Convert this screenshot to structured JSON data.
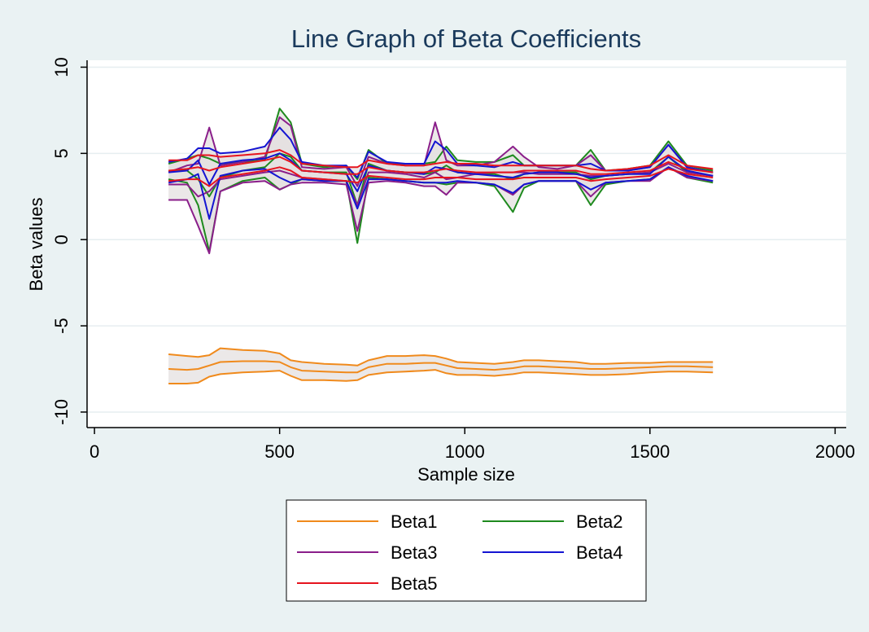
{
  "chart_data": {
    "type": "line",
    "title": "Line Graph of Beta Coefficients",
    "xlabel": "Sample size",
    "ylabel": "Beta values",
    "xlim": [
      -20,
      2030
    ],
    "ylim": [
      -10.9,
      10.4
    ],
    "xticks": [
      0,
      500,
      1000,
      1500,
      2000
    ],
    "xtick_labels": [
      "0",
      "500",
      "1000",
      "1500",
      "2000"
    ],
    "yticks": [
      -10,
      -5,
      0,
      5,
      10
    ],
    "ytick_labels": [
      "-10",
      "-5",
      "0",
      "5",
      "10"
    ],
    "grid": true,
    "legend_position": "bottom",
    "band_fill": "#e4e0e0",
    "x": [
      200,
      250,
      280,
      310,
      340,
      400,
      460,
      500,
      530,
      560,
      620,
      680,
      710,
      740,
      790,
      840,
      890,
      920,
      950,
      980,
      1030,
      1080,
      1130,
      1160,
      1200,
      1250,
      1300,
      1340,
      1380,
      1440,
      1500,
      1550,
      1600,
      1670
    ],
    "series": [
      {
        "name": "Beta1",
        "color": "#f08a1c",
        "mean": [
          -7.5,
          -7.55,
          -7.5,
          -7.3,
          -7.1,
          -7.05,
          -7.05,
          -7.1,
          -7.4,
          -7.6,
          -7.65,
          -7.7,
          -7.7,
          -7.4,
          -7.2,
          -7.2,
          -7.15,
          -7.15,
          -7.3,
          -7.45,
          -7.5,
          -7.55,
          -7.45,
          -7.35,
          -7.35,
          -7.4,
          -7.45,
          -7.5,
          -7.5,
          -7.45,
          -7.4,
          -7.35,
          -7.35,
          -7.4
        ],
        "upper": [
          -6.65,
          -6.75,
          -6.8,
          -6.7,
          -6.3,
          -6.4,
          -6.45,
          -6.6,
          -7.0,
          -7.1,
          -7.2,
          -7.25,
          -7.3,
          -7.0,
          -6.75,
          -6.75,
          -6.7,
          -6.75,
          -6.9,
          -7.1,
          -7.15,
          -7.2,
          -7.1,
          -7.0,
          -7.0,
          -7.05,
          -7.1,
          -7.2,
          -7.2,
          -7.15,
          -7.15,
          -7.1,
          -7.1,
          -7.1
        ],
        "lower": [
          -8.35,
          -8.35,
          -8.3,
          -7.95,
          -7.8,
          -7.7,
          -7.65,
          -7.6,
          -7.9,
          -8.15,
          -8.15,
          -8.2,
          -8.15,
          -7.85,
          -7.7,
          -7.65,
          -7.6,
          -7.55,
          -7.75,
          -7.85,
          -7.85,
          -7.9,
          -7.8,
          -7.7,
          -7.7,
          -7.75,
          -7.8,
          -7.85,
          -7.85,
          -7.8,
          -7.7,
          -7.65,
          -7.65,
          -7.7
        ]
      },
      {
        "name": "Beta2",
        "color": "#1e8a1e",
        "mean": [
          4.0,
          4.0,
          3.5,
          2.5,
          3.6,
          4.0,
          4.2,
          5.0,
          4.8,
          4.0,
          3.9,
          3.9,
          2.0,
          4.4,
          4.0,
          3.9,
          3.8,
          3.9,
          4.3,
          3.9,
          3.8,
          3.8,
          3.5,
          3.8,
          3.9,
          3.9,
          3.9,
          3.5,
          3.7,
          3.8,
          3.9,
          4.8,
          3.9,
          3.7
        ],
        "upper": [
          4.4,
          4.7,
          4.9,
          4.7,
          4.4,
          4.5,
          4.6,
          7.6,
          6.8,
          4.4,
          4.2,
          4.3,
          3.5,
          5.2,
          4.4,
          4.4,
          4.4,
          4.5,
          5.4,
          4.6,
          4.5,
          4.5,
          4.9,
          4.3,
          4.3,
          4.3,
          4.3,
          5.2,
          4.0,
          4.1,
          4.3,
          5.7,
          4.3,
          4.0
        ],
        "lower": [
          3.5,
          3.3,
          2.0,
          -0.7,
          2.8,
          3.4,
          3.6,
          2.9,
          3.2,
          3.5,
          3.4,
          3.4,
          -0.2,
          3.6,
          3.5,
          3.4,
          3.3,
          3.3,
          3.2,
          3.3,
          3.3,
          3.1,
          1.6,
          3.0,
          3.4,
          3.4,
          3.4,
          2.0,
          3.2,
          3.4,
          3.5,
          4.2,
          3.6,
          3.3
        ]
      },
      {
        "name": "Beta3",
        "color": "#8a1e8a",
        "mean": [
          3.2,
          3.2,
          2.5,
          2.8,
          3.5,
          3.7,
          3.9,
          4.0,
          3.8,
          3.6,
          3.5,
          3.4,
          2.0,
          3.9,
          3.9,
          3.8,
          3.6,
          3.9,
          3.5,
          3.6,
          3.8,
          3.9,
          3.9,
          3.9,
          3.8,
          3.8,
          3.8,
          3.7,
          3.7,
          3.8,
          3.9,
          4.4,
          3.9,
          3.7
        ],
        "upper": [
          3.9,
          4.3,
          4.4,
          6.5,
          4.3,
          4.5,
          4.8,
          7.1,
          6.6,
          4.2,
          4.1,
          4.2,
          3.1,
          4.8,
          4.4,
          4.3,
          4.3,
          6.8,
          4.6,
          4.3,
          4.3,
          4.5,
          5.4,
          4.8,
          4.2,
          4.1,
          4.3,
          4.9,
          4.0,
          4.0,
          4.2,
          5.5,
          4.2,
          3.9
        ],
        "lower": [
          2.3,
          2.3,
          0.8,
          -0.8,
          2.8,
          3.3,
          3.4,
          2.9,
          3.2,
          3.3,
          3.3,
          3.2,
          0.5,
          3.3,
          3.4,
          3.3,
          3.1,
          3.1,
          2.6,
          3.3,
          3.3,
          3.2,
          2.6,
          3.2,
          3.4,
          3.4,
          3.4,
          2.5,
          3.3,
          3.4,
          3.4,
          4.2,
          3.6,
          3.4
        ]
      },
      {
        "name": "Beta4",
        "color": "#1414d2",
        "mean": [
          3.9,
          4.0,
          4.6,
          3.2,
          4.4,
          4.6,
          4.7,
          5.0,
          4.6,
          4.0,
          3.9,
          3.8,
          2.8,
          4.3,
          4.0,
          3.9,
          3.8,
          4.2,
          4.1,
          3.9,
          3.8,
          3.7,
          3.6,
          3.8,
          3.9,
          3.9,
          3.8,
          3.6,
          3.7,
          3.8,
          3.8,
          4.8,
          4.0,
          3.7
        ],
        "upper": [
          4.5,
          4.7,
          5.3,
          5.3,
          5.0,
          5.1,
          5.4,
          6.5,
          5.8,
          4.5,
          4.3,
          4.3,
          3.6,
          5.1,
          4.5,
          4.4,
          4.4,
          5.7,
          5.2,
          4.4,
          4.3,
          4.2,
          4.5,
          4.3,
          4.3,
          4.3,
          4.3,
          4.4,
          4.0,
          4.0,
          4.2,
          5.5,
          4.2,
          3.9
        ],
        "lower": [
          3.3,
          3.5,
          3.8,
          1.2,
          3.7,
          4.0,
          4.1,
          3.6,
          3.3,
          3.5,
          3.4,
          3.4,
          1.8,
          3.5,
          3.5,
          3.4,
          3.3,
          3.3,
          3.3,
          3.4,
          3.3,
          3.2,
          2.7,
          3.2,
          3.4,
          3.4,
          3.4,
          2.9,
          3.3,
          3.4,
          3.5,
          4.2,
          3.7,
          3.4
        ]
      },
      {
        "name": "Beta5",
        "color": "#e6141e",
        "mean": [
          4.0,
          4.1,
          4.2,
          4.0,
          4.2,
          4.4,
          4.6,
          4.8,
          4.5,
          4.0,
          3.9,
          3.8,
          3.8,
          4.2,
          4.0,
          3.9,
          3.9,
          4.0,
          4.1,
          4.0,
          3.9,
          3.9,
          3.9,
          4.0,
          4.0,
          4.0,
          4.0,
          3.8,
          3.8,
          3.9,
          4.0,
          4.5,
          4.1,
          3.9
        ],
        "upper": [
          4.6,
          4.6,
          4.9,
          4.9,
          4.8,
          4.9,
          5.0,
          5.2,
          4.9,
          4.4,
          4.3,
          4.2,
          4.2,
          4.6,
          4.4,
          4.3,
          4.3,
          4.4,
          4.5,
          4.4,
          4.4,
          4.3,
          4.3,
          4.3,
          4.3,
          4.3,
          4.3,
          4.1,
          4.0,
          4.1,
          4.3,
          4.9,
          4.3,
          4.1
        ],
        "lower": [
          3.4,
          3.5,
          3.5,
          3.1,
          3.6,
          3.8,
          4.0,
          4.2,
          4.0,
          3.6,
          3.5,
          3.4,
          3.3,
          3.7,
          3.6,
          3.5,
          3.5,
          3.6,
          3.6,
          3.6,
          3.5,
          3.5,
          3.5,
          3.6,
          3.6,
          3.6,
          3.6,
          3.4,
          3.5,
          3.6,
          3.7,
          4.1,
          3.8,
          3.6
        ]
      }
    ]
  }
}
